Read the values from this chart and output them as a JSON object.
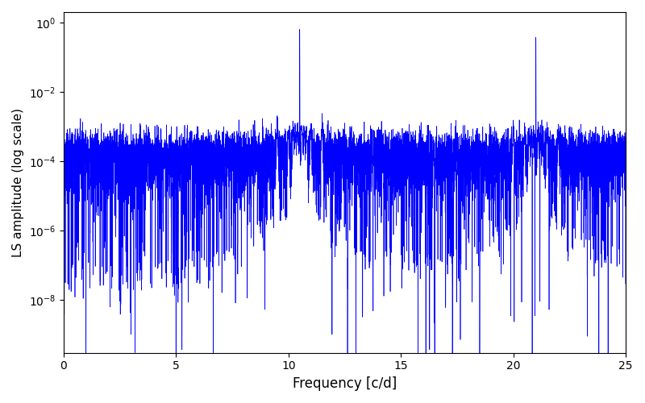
{
  "title": "",
  "xlabel": "Frequency [c/d]",
  "ylabel": "LS amplitude (log scale)",
  "line_color": "#0000ff",
  "line_width": 0.5,
  "xlim": [
    0,
    25
  ],
  "ylim_bottom": 3e-10,
  "ylim_top": 2.0,
  "freq_min": 0.0,
  "freq_max": 25.0,
  "n_points": 8000,
  "peak1_freq": 10.5,
  "peak1_amp": 0.7,
  "peak2_freq": 21.0,
  "peak2_amp": 0.38,
  "noise_level": 0.0002,
  "seed": 17,
  "figwidth": 8.0,
  "figheight": 5.0,
  "dpi": 100,
  "bg_color": "#ffffff"
}
